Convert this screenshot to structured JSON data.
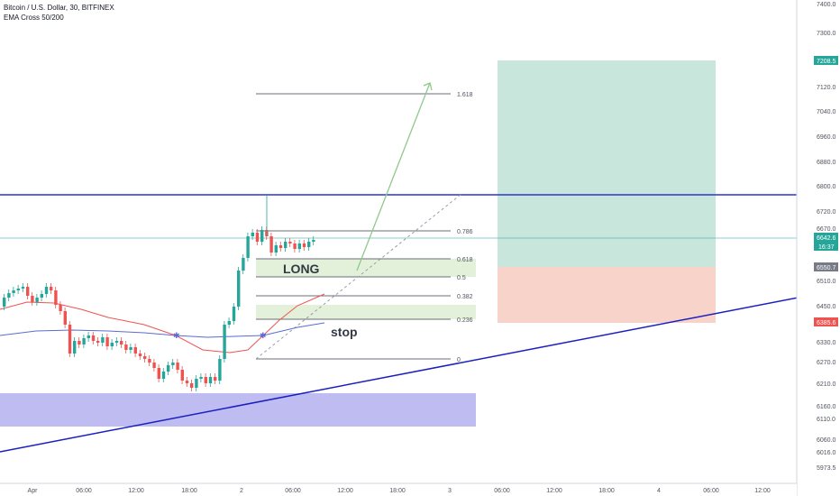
{
  "header": {
    "symbol_title": "Bitcoin / U.S. Dollar, 30, BITFINEX",
    "indicator_label": "EMA Cross 50/200"
  },
  "price_axis": {
    "ticks": [
      "7400.0",
      "7300.0",
      "7208.5",
      "7120.0",
      "7040.0",
      "6960.0",
      "6880.0",
      "6800.0",
      "6720.0",
      "6670.0",
      "6642.6",
      "16:37",
      "6550.7",
      "6510.0",
      "6450.0",
      "6385.6",
      "6330.0",
      "6270.0",
      "6210.0",
      "6160.0",
      "6110.0",
      "6060.0",
      "6016.0",
      "5973.5"
    ]
  },
  "time_axis": {
    "labels": [
      "Apr",
      "06:00",
      "12:00",
      "18:00",
      "2",
      "06:00",
      "12:00",
      "18:00",
      "3",
      "06:00",
      "12:00",
      "18:00",
      "4",
      "06:00",
      "12:00"
    ]
  },
  "price_tags": {
    "target": {
      "text": "7208.5",
      "color": "#26a69a"
    },
    "last_price": {
      "text": "6642.6",
      "color": "#26a69a"
    },
    "countdown": {
      "text": "16:37",
      "color": "#26a69a"
    },
    "entry": {
      "text": "6550.7",
      "color": "#787b86"
    },
    "stop": {
      "text": "6385.6",
      "color": "#ef5350"
    }
  },
  "fib_levels": [
    {
      "label": "1.618"
    },
    {
      "label": "0.786"
    },
    {
      "label": "0.618"
    },
    {
      "label": "0.5"
    },
    {
      "label": "0.382"
    },
    {
      "label": "0.236"
    },
    {
      "label": "0"
    }
  ],
  "annotations": {
    "long_label": "LONG",
    "stop_label": "stop"
  },
  "colors": {
    "up_candle": "#26a69a",
    "down_candle": "#ef5350",
    "ema_fast": "#ef5350",
    "ema_slow": "#5b6bd1",
    "resistance_line": "#2a37c9",
    "trend_line": "#1a1fbf",
    "support_zone": "#b3b0ee",
    "profit_zone": "#c9e6dc",
    "loss_zone": "#f8d3c9",
    "fib_zone": "#e3f0da"
  }
}
